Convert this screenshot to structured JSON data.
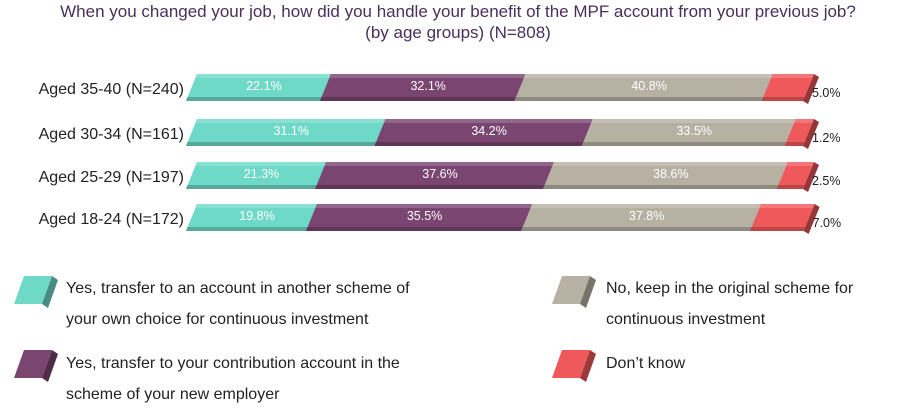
{
  "chart_data": {
    "type": "bar",
    "orientation": "horizontal",
    "stacked": true,
    "title_lines": [
      "When you changed your job, how did you handle your benefit of the MPF account from your previous job?",
      "(by age groups) (N=808)"
    ],
    "categories": [
      "Aged 35-40 (N=240)",
      "Aged 30-34 (N=161)",
      "Aged 25-29 (N=197)",
      "Aged 18-24 (N=172)"
    ],
    "series": [
      {
        "name": "Yes, transfer to an account in another scheme of your own choice for continuous investment",
        "legend_lines": [
          "Yes, transfer to an account in another scheme of",
          "your own choice for continuous investment"
        ],
        "values": [
          22.1,
          31.1,
          21.3,
          19.8
        ],
        "labels": [
          "22.1%",
          "31.1%",
          "21.3%",
          "19.8%"
        ],
        "color": "#6fd9c8"
      },
      {
        "name": "Yes, transfer to your contribution account in the scheme of your new employer",
        "legend_lines": [
          "Yes, transfer to your contribution account in the",
          "scheme of your new employer"
        ],
        "values": [
          32.1,
          34.2,
          37.6,
          35.5
        ],
        "labels": [
          "32.1%",
          "34.2%",
          "37.6%",
          "35.5%"
        ],
        "color": "#7a4571"
      },
      {
        "name": "No, keep in the original scheme for continuous investment",
        "legend_lines": [
          "No, keep in the original scheme for",
          "continuous investment"
        ],
        "values": [
          40.8,
          33.5,
          38.6,
          37.8
        ],
        "labels": [
          "40.8%",
          "33.5%",
          "38.6%",
          "37.8%"
        ],
        "color": "#b6b1a3"
      },
      {
        "name": "Don’t know",
        "legend_lines": [
          "Don’t know"
        ],
        "values": [
          5.0,
          1.2,
          2.5,
          7.0
        ],
        "labels": [
          "5.0%",
          "1.2%",
          "2.5%",
          "7.0%"
        ],
        "color": "#f0595b"
      }
    ],
    "xlim": [
      0,
      100
    ],
    "legend": "bottom"
  }
}
